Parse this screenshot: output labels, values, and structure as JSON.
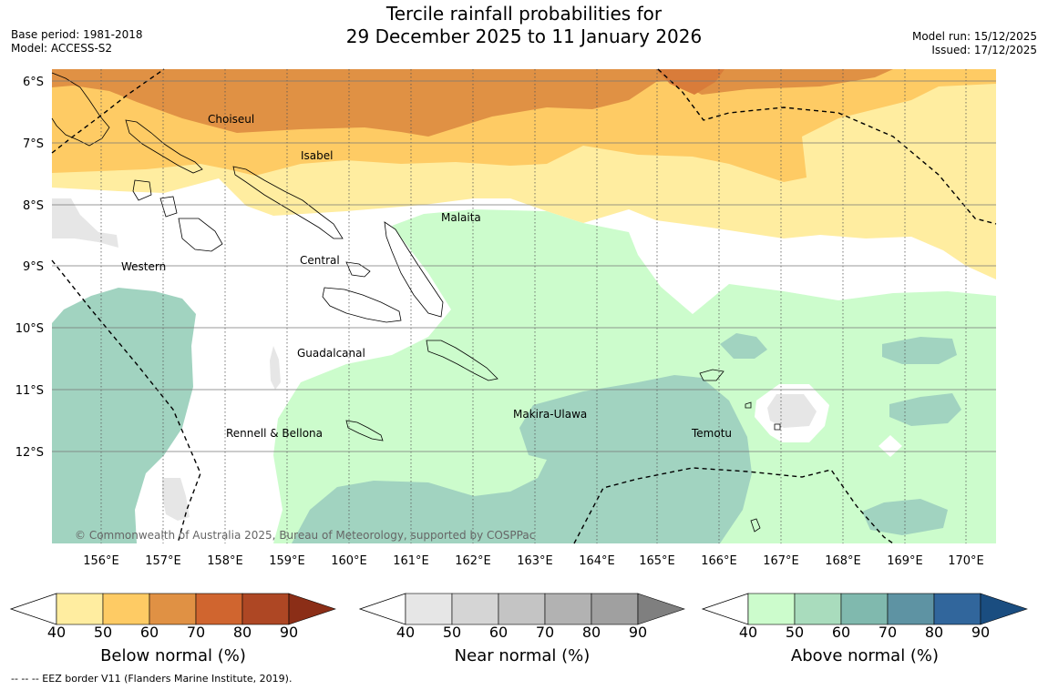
{
  "title": {
    "line1": "Tercile rainfall probabilities for",
    "line2": "29 December 2025 to 11 January 2026"
  },
  "meta": {
    "base_period": "Base period: 1981-2018",
    "model": "Model: ACCESS-S2",
    "model_run": "Model run: 15/12/2025",
    "issued": "Issued: 17/12/2025"
  },
  "map": {
    "longitudes": [
      "156°E",
      "157°E",
      "158°E",
      "159°E",
      "160°E",
      "161°E",
      "162°E",
      "163°E",
      "164°E",
      "165°E",
      "166°E",
      "167°E",
      "168°E",
      "169°E",
      "170°E"
    ],
    "latitudes": [
      "6°S",
      "7°S",
      "8°S",
      "9°S",
      "10°S",
      "11°S",
      "12°S"
    ],
    "places": [
      "Choiseul",
      "Isabel",
      "Malaita",
      "Western",
      "Central",
      "Guadalcanal",
      "Makira-Ulawa",
      "Rennell & Bellona",
      "Temotu"
    ],
    "copyright": "© Commonwealth of Australia 2025, Bureau of Meteorology, supported by COSPPac"
  },
  "colorbars": {
    "ticks": [
      "40",
      "50",
      "60",
      "70",
      "80",
      "90"
    ],
    "below": {
      "label": "Below normal (%)",
      "colors": [
        "#ffeda0",
        "#fecb64",
        "#e09144",
        "#d0652f",
        "#ae4724",
        "#8b2e17"
      ]
    },
    "near": {
      "label": "Near normal (%)",
      "colors": [
        "#e6e6e6",
        "#d5d5d5",
        "#c4c4c4",
        "#b2b2b2",
        "#a0a0a0",
        "#7f7f7f"
      ]
    },
    "above": {
      "label": "Above normal (%)",
      "colors": [
        "#ccfccc",
        "#a9dcbd",
        "#80b9ae",
        "#5e93a3",
        "#31669c",
        "#1a4d80"
      ]
    }
  },
  "footnote": "--  --  -- EEZ border V11 (Flanders Marine Institute, 2019)."
}
